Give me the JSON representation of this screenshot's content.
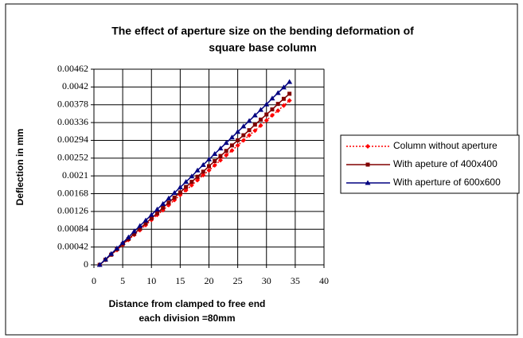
{
  "chart_data": {
    "type": "line",
    "title": [
      "The effect of aperture size on the bending deformation of",
      "square base column"
    ],
    "x_label": [
      "Distance from clamped to free end",
      "each division =80mm"
    ],
    "y_label": "Deflection in mm",
    "x": [
      1,
      2,
      3,
      4,
      5,
      6,
      7,
      8,
      9,
      10,
      11,
      12,
      13,
      14,
      15,
      16,
      17,
      18,
      19,
      20,
      21,
      22,
      23,
      24,
      25,
      26,
      27,
      28,
      29,
      30,
      31,
      32,
      33,
      34
    ],
    "series": [
      {
        "name": "Column without aperture",
        "color": "#ff0000",
        "marker": "diamond",
        "dash": "dotted",
        "values": [
          0,
          0.00012,
          0.00024,
          0.00035,
          0.00047,
          0.00059,
          0.00071,
          0.00082,
          0.00094,
          0.00106,
          0.00118,
          0.00129,
          0.00141,
          0.00153,
          0.00165,
          0.00176,
          0.00188,
          0.002,
          0.00212,
          0.00223,
          0.00235,
          0.00247,
          0.00259,
          0.0027,
          0.00282,
          0.00294,
          0.00306,
          0.00317,
          0.00329,
          0.00341,
          0.00353,
          0.00364,
          0.00376,
          0.00388
        ]
      },
      {
        "name": "With apeture of 400x400",
        "color": "#800000",
        "marker": "square",
        "dash": "solid",
        "values": [
          0,
          0.00012,
          0.00024,
          0.00037,
          0.00049,
          0.00061,
          0.00073,
          0.00086,
          0.00098,
          0.0011,
          0.00122,
          0.00135,
          0.00147,
          0.00159,
          0.00171,
          0.00184,
          0.00196,
          0.00208,
          0.0022,
          0.00233,
          0.00245,
          0.00257,
          0.00269,
          0.00282,
          0.00294,
          0.00306,
          0.00318,
          0.00331,
          0.00343,
          0.00355,
          0.00367,
          0.0038,
          0.00392,
          0.00404
        ]
      },
      {
        "name": "With aperture of 600x600",
        "color": "#000080",
        "marker": "triangle",
        "dash": "solid",
        "values": [
          0,
          0.00013,
          0.00026,
          0.00039,
          0.00052,
          0.00065,
          0.00079,
          0.00092,
          0.00105,
          0.00118,
          0.00131,
          0.00144,
          0.00157,
          0.0017,
          0.00183,
          0.00196,
          0.00209,
          0.00223,
          0.00236,
          0.00249,
          0.00262,
          0.00275,
          0.00288,
          0.00301,
          0.00314,
          0.00327,
          0.0034,
          0.00353,
          0.00366,
          0.00379,
          0.00393,
          0.00406,
          0.00419,
          0.00432
        ]
      }
    ],
    "xlim": [
      0,
      40
    ],
    "xticks": [
      0,
      5,
      10,
      15,
      20,
      25,
      30,
      35,
      40
    ],
    "ylim": [
      0,
      0.00462
    ],
    "yticks": [
      0,
      0.00042,
      0.00084,
      0.00126,
      0.00168,
      0.0021,
      0.00252,
      0.00294,
      0.00336,
      0.00378,
      0.0042,
      0.00462
    ],
    "grid": true,
    "legend": "right"
  }
}
